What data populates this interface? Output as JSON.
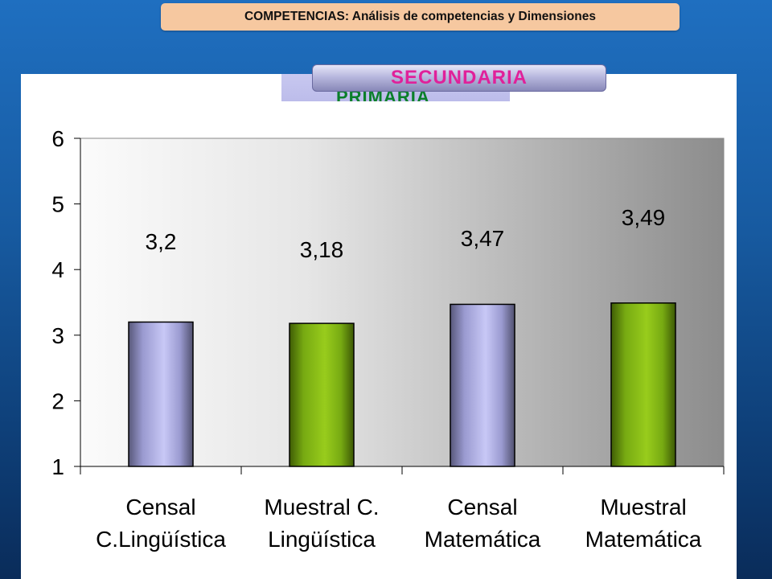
{
  "header": {
    "title_bold": "COMPETENCIAS:",
    "title_rest": " Análisis de competencias y Dimensiones"
  },
  "tabs": {
    "back_label": "PRIMARIA",
    "front_label": "SECUNDARIA"
  },
  "chart_data": {
    "type": "bar",
    "categories": [
      [
        "Censal",
        "C.Lingüística"
      ],
      [
        "Muestral C.",
        "Lingüística"
      ],
      [
        "Censal",
        "Matemática"
      ],
      [
        "Muestral",
        "Matemática"
      ]
    ],
    "values": [
      3.2,
      3.18,
      3.47,
      3.49
    ],
    "data_labels": [
      "3,2",
      "3,18",
      "3,47",
      "3,49"
    ],
    "ylim": [
      1,
      6
    ],
    "yticks": [
      "1",
      "2",
      "3",
      "4",
      "5",
      "6"
    ],
    "bar_colors": [
      "#b9b9ec",
      "#8fc21a",
      "#b9b9ec",
      "#8fc21a"
    ],
    "grid": false,
    "legend": "none"
  }
}
